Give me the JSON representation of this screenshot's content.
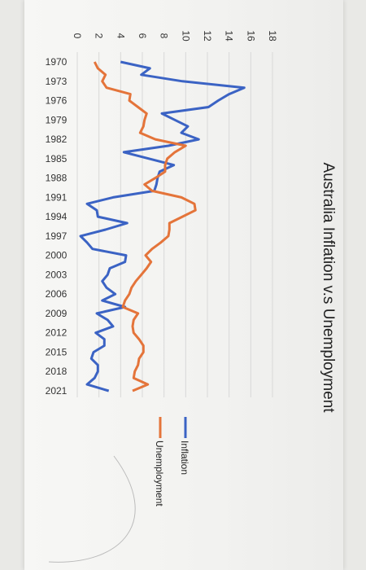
{
  "chart_data": {
    "type": "line",
    "title": "Australia Inflation v.s Unemployment",
    "x_ticks": [
      "1970",
      "1973",
      "1976",
      "1979",
      "1982",
      "1985",
      "1988",
      "1991",
      "1994",
      "1997",
      "2000",
      "2003",
      "2006",
      "2009",
      "2012",
      "2015",
      "2018",
      "2021"
    ],
    "x": [
      1970,
      1971,
      1972,
      1973,
      1974,
      1975,
      1976,
      1977,
      1978,
      1979,
      1980,
      1981,
      1982,
      1983,
      1984,
      1985,
      1986,
      1987,
      1988,
      1989,
      1990,
      1991,
      1992,
      1993,
      1994,
      1995,
      1996,
      1997,
      1998,
      1999,
      2000,
      2001,
      2002,
      2003,
      2004,
      2005,
      2006,
      2007,
      2008,
      2009,
      2010,
      2011,
      2012,
      2013,
      2014,
      2015,
      2016,
      2017,
      2018,
      2019,
      2020,
      2021
    ],
    "y_ticks": [
      "0",
      "2",
      "4",
      "6",
      "8",
      "10",
      "12",
      "14",
      "16",
      "18"
    ],
    "ylim": [
      0,
      18
    ],
    "series": [
      {
        "name": "Inflation",
        "color": "#3b63c4",
        "values": [
          4.0,
          6.7,
          5.9,
          9.7,
          15.4,
          14.0,
          13.0,
          12.1,
          7.8,
          9.0,
          10.2,
          9.6,
          11.2,
          8.4,
          4.3,
          6.6,
          8.9,
          7.6,
          7.4,
          7.3,
          7.1,
          3.3,
          0.9,
          1.8,
          1.9,
          4.6,
          2.6,
          0.3,
          0.9,
          1.4,
          4.5,
          4.4,
          3.0,
          2.8,
          2.3,
          2.7,
          3.5,
          2.3,
          4.4,
          1.8,
          2.8,
          3.3,
          1.7,
          2.5,
          2.5,
          1.5,
          1.3,
          1.9,
          1.9,
          1.6,
          0.9,
          2.9
        ]
      },
      {
        "name": "Unemployment",
        "color": "#e4743a",
        "values": [
          1.6,
          1.9,
          2.6,
          2.3,
          2.7,
          4.9,
          4.8,
          5.6,
          6.4,
          6.2,
          6.1,
          5.8,
          7.2,
          10.0,
          9.0,
          8.3,
          8.1,
          8.1,
          7.2,
          6.2,
          6.9,
          9.6,
          10.8,
          10.9,
          9.7,
          8.5,
          8.5,
          8.4,
          7.7,
          6.9,
          6.3,
          6.8,
          6.4,
          5.9,
          5.4,
          5.0,
          4.8,
          4.4,
          4.2,
          5.6,
          5.2,
          5.1,
          5.2,
          5.7,
          6.1,
          6.1,
          5.7,
          5.6,
          5.3,
          5.2,
          6.5,
          5.1
        ]
      }
    ],
    "legend_position": "bottom",
    "grid": "horizontal"
  }
}
